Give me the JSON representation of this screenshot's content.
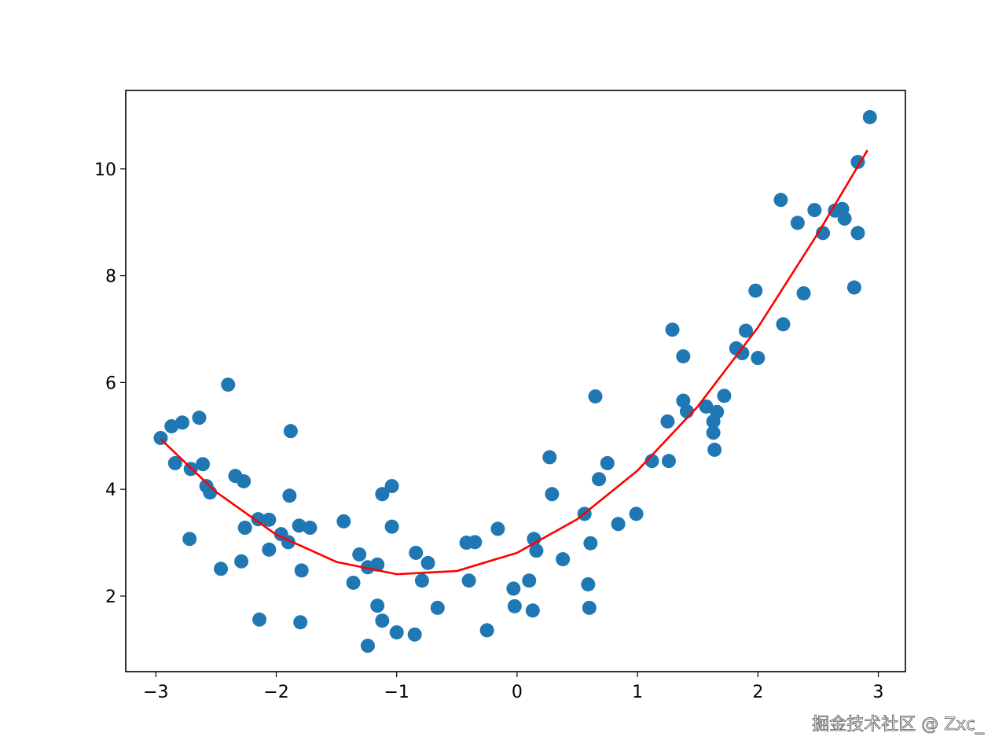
{
  "chart_data": {
    "type": "scatter",
    "xlim": [
      -3.25,
      3.225
    ],
    "ylim": [
      0.585,
      11.47
    ],
    "xticks": [
      {
        "value": -3,
        "label": "−3"
      },
      {
        "value": -2,
        "label": "−2"
      },
      {
        "value": -1,
        "label": "−1"
      },
      0,
      1,
      2,
      3
    ],
    "yticks": [
      2,
      4,
      6,
      8,
      10
    ],
    "series": [
      {
        "kind": "scatter",
        "color": "#1f77b4",
        "x": [
          -2.96,
          -2.87,
          -2.78,
          -2.64,
          -2.84,
          -2.71,
          -2.61,
          -2.72,
          -2.58,
          -2.55,
          -2.4,
          -2.46,
          -2.34,
          -2.27,
          -2.26,
          -2.29,
          -2.15,
          -2.06,
          -2.14,
          -2.06,
          -1.96,
          -1.9,
          -1.88,
          -1.89,
          -1.81,
          -1.72,
          -1.79,
          -1.8,
          -1.44,
          -1.36,
          -1.31,
          -1.24,
          -1.16,
          -1.24,
          -1.16,
          -1.12,
          -1.12,
          -1.04,
          -1.04,
          -1.0,
          -0.85,
          -0.84,
          -0.79,
          -0.74,
          -0.66,
          -0.42,
          -0.35,
          -0.4,
          -0.25,
          -0.16,
          -0.03,
          -0.02,
          0.1,
          0.13,
          0.14,
          0.16,
          0.27,
          0.29,
          0.38,
          0.56,
          0.59,
          0.6,
          0.61,
          0.65,
          0.68,
          0.75,
          0.84,
          0.99,
          1.12,
          1.25,
          1.26,
          1.29,
          1.38,
          1.38,
          1.41,
          1.57,
          1.66,
          1.63,
          1.63,
          1.64,
          1.72,
          1.82,
          1.87,
          1.9,
          1.98,
          2.0,
          2.19,
          2.21,
          2.33,
          2.38,
          2.47,
          2.54,
          2.64,
          2.7,
          2.72,
          2.8,
          2.83,
          2.83,
          2.93
        ],
        "values": [
          4.96,
          5.18,
          5.25,
          5.34,
          4.49,
          4.38,
          4.47,
          3.07,
          4.06,
          3.94,
          5.96,
          2.51,
          4.25,
          4.15,
          3.28,
          2.65,
          3.44,
          3.43,
          1.56,
          2.87,
          3.16,
          3.01,
          5.09,
          3.88,
          3.32,
          3.28,
          2.48,
          1.51,
          3.4,
          2.25,
          2.78,
          2.54,
          2.59,
          1.07,
          1.82,
          1.54,
          3.91,
          4.06,
          3.3,
          1.32,
          1.28,
          2.81,
          2.29,
          2.62,
          1.78,
          3.0,
          3.01,
          2.29,
          1.36,
          3.26,
          2.14,
          1.81,
          2.29,
          1.73,
          3.07,
          2.85,
          4.6,
          3.91,
          2.69,
          3.54,
          2.22,
          1.78,
          2.99,
          5.74,
          4.19,
          4.49,
          3.35,
          3.54,
          4.53,
          5.27,
          4.53,
          6.99,
          6.49,
          5.66,
          5.46,
          5.55,
          5.45,
          5.27,
          5.06,
          4.74,
          5.75,
          6.64,
          6.55,
          6.97,
          7.72,
          6.46,
          9.42,
          7.09,
          8.99,
          7.67,
          9.23,
          8.8,
          9.22,
          9.25,
          9.07,
          7.78,
          10.13,
          8.8,
          10.97
        ]
      },
      {
        "kind": "line",
        "color": "#ff0000",
        "x": [
          -2.96,
          -2.5,
          -2,
          -1.5,
          -1,
          -0.5,
          0,
          0.5,
          1,
          1.5,
          2,
          2.5,
          2.91
        ],
        "values": [
          4.94,
          3.95,
          3.15,
          2.64,
          2.41,
          2.47,
          2.81,
          3.44,
          4.35,
          5.55,
          7.03,
          8.8,
          10.35
        ]
      }
    ]
  },
  "watermark": "掘金技术社区 @ Zxc_"
}
